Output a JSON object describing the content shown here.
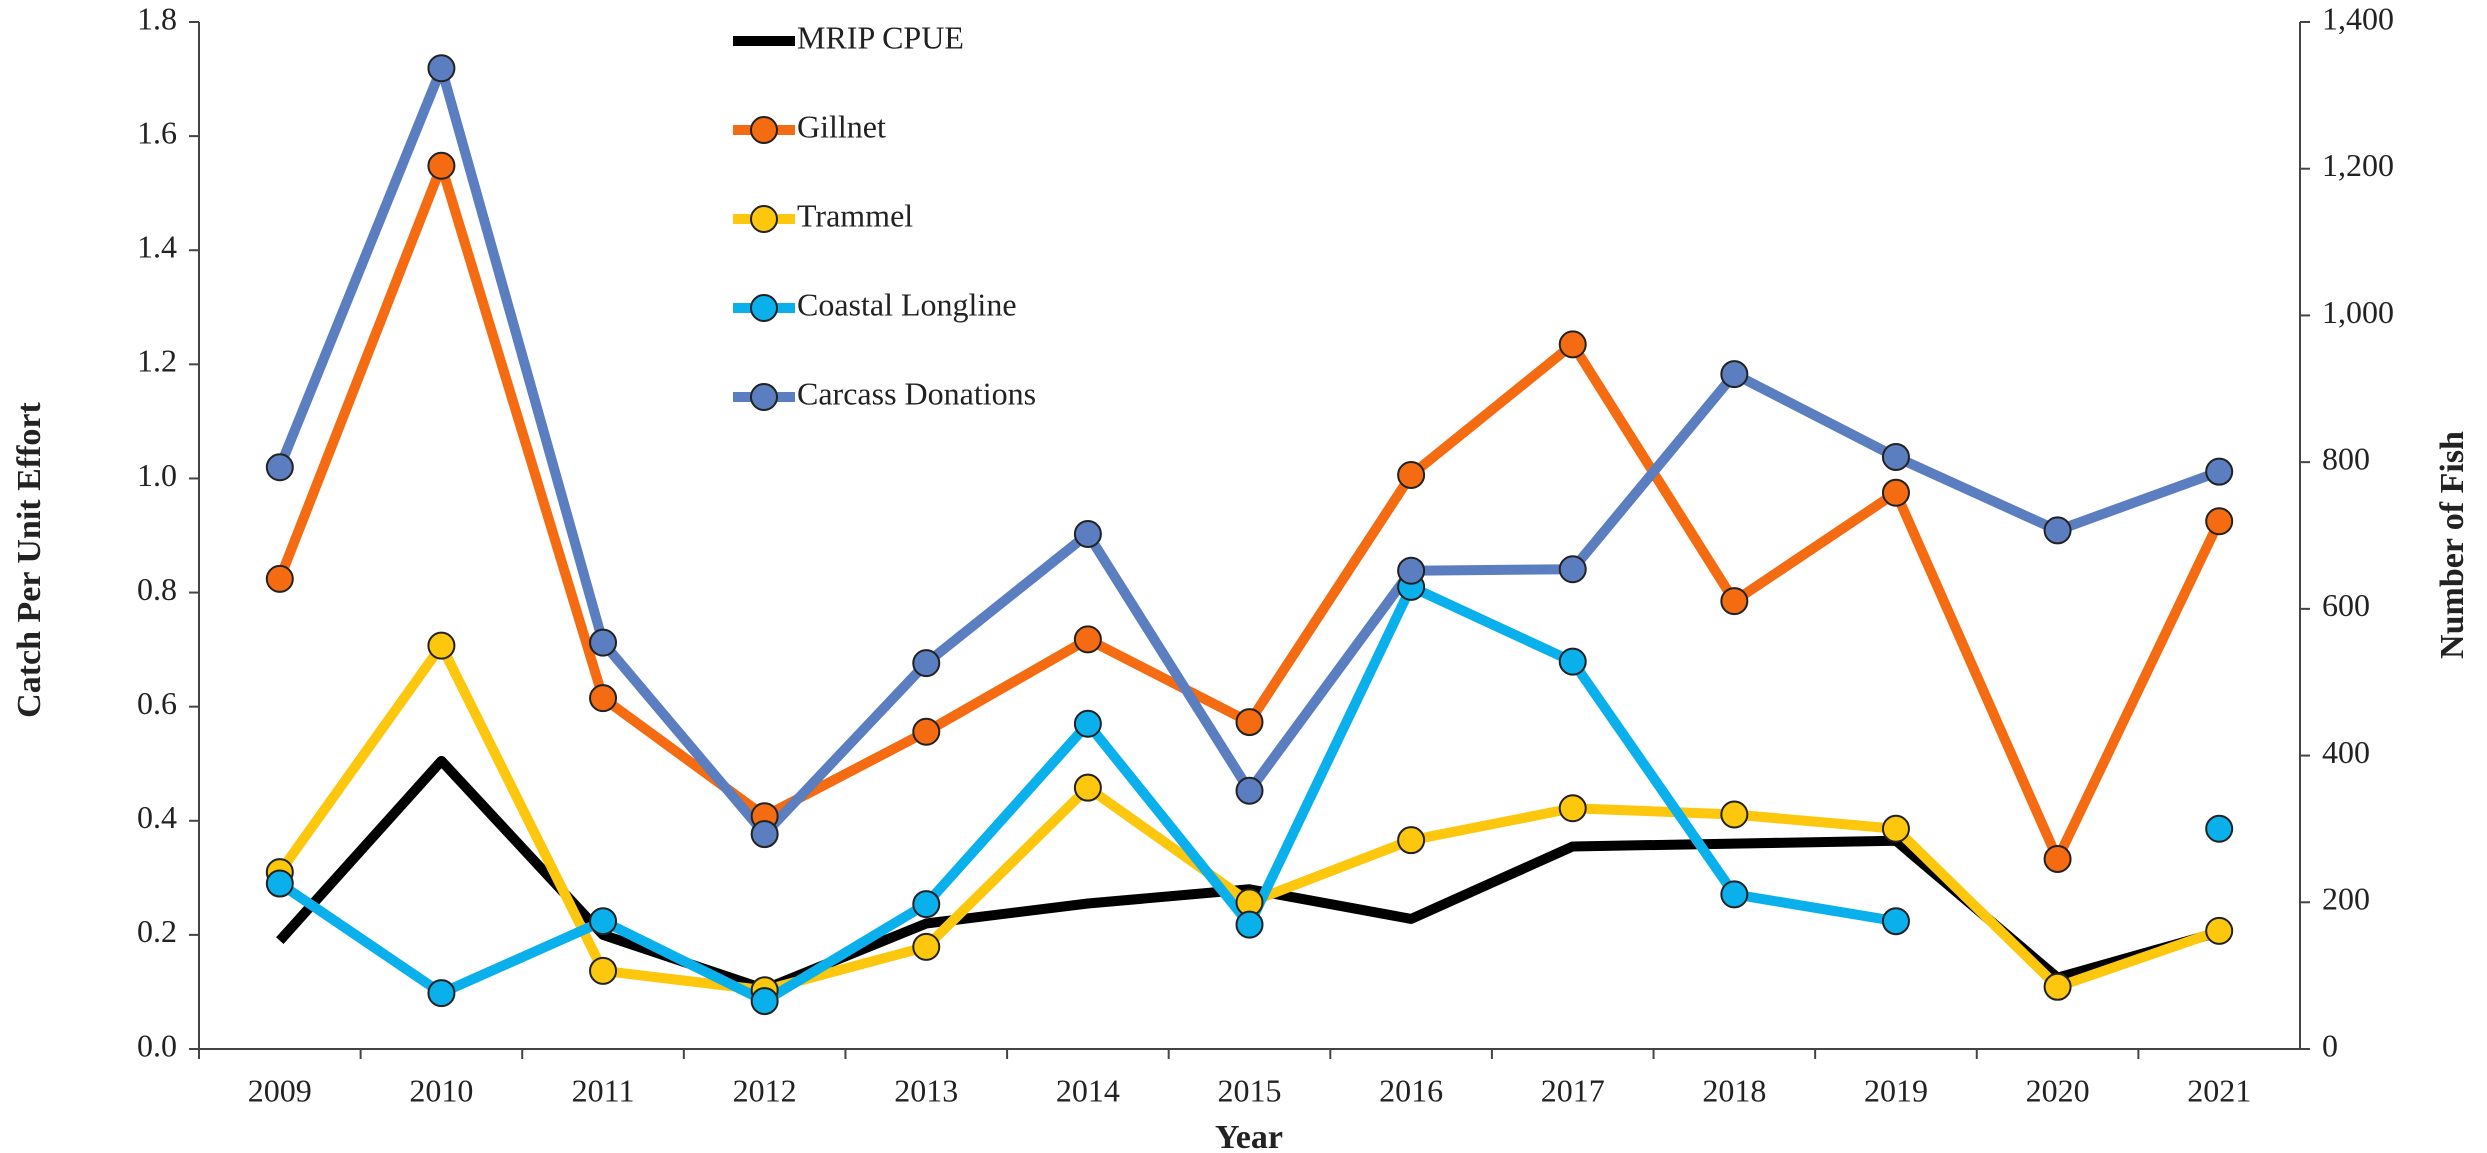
{
  "chart_data": {
    "type": "line",
    "xlabel": "Year",
    "ylabel": "Catch Per Unit Effort",
    "y2label": "Number of Fish",
    "categories": [
      "2009",
      "2010",
      "2011",
      "2012",
      "2013",
      "2014",
      "2015",
      "2016",
      "2017",
      "2018",
      "2019",
      "2020",
      "2021"
    ],
    "ylim": [
      0,
      1.8
    ],
    "yticks": [
      {
        "value": 0,
        "label": "0.0"
      },
      {
        "value": 0.2,
        "label": "0.2"
      },
      {
        "value": 0.4,
        "label": "0.4"
      },
      {
        "value": 0.6,
        "label": "0.6"
      },
      {
        "value": 0.8,
        "label": "0.8"
      },
      {
        "value": 1,
        "label": "1.0"
      },
      {
        "value": 1.2,
        "label": "1.2"
      },
      {
        "value": 1.4,
        "label": "1.4"
      },
      {
        "value": 1.6,
        "label": "1.6"
      },
      {
        "value": 1.8,
        "label": "1.8"
      }
    ],
    "y2lim": [
      0,
      1400
    ],
    "y2ticks": [
      0,
      200,
      400,
      600,
      800,
      {
        "value": 1000,
        "label": "1,000"
      },
      {
        "value": 1200,
        "label": "1,200"
      },
      {
        "value": 1400,
        "label": "1,400"
      }
    ],
    "grid": false,
    "series": [
      {
        "name": "MRIP CPUE",
        "color": "#000000",
        "marker": false,
        "values": [
          0.19,
          0.505,
          0.2,
          0.105,
          0.22,
          0.255,
          0.28,
          0.228,
          0.355,
          0.36,
          0.365,
          0.125,
          0.205
        ]
      },
      {
        "name": "Gillnet",
        "color": "#f46b12",
        "marker": true,
        "values": [
          0.824,
          1.548,
          0.615,
          0.408,
          0.556,
          0.718,
          0.573,
          1.006,
          1.235,
          0.785,
          0.975,
          0.333,
          0.925
        ]
      },
      {
        "name": "Trammel",
        "color": "#fcc70c",
        "marker": true,
        "values": [
          0.31,
          0.707,
          0.137,
          0.103,
          0.179,
          0.458,
          0.257,
          0.366,
          0.422,
          0.411,
          0.386,
          0.109,
          0.207
        ]
      },
      {
        "name": "Coastal Longline",
        "color": "#0ab0ec",
        "marker": true,
        "values": [
          0.29,
          0.098,
          0.224,
          0.084,
          0.254,
          0.57,
          0.218,
          0.81,
          0.679,
          0.271,
          0.224,
          null,
          0.386
        ]
      },
      {
        "name": "Carcass Donations",
        "color": "#5a7ebf",
        "marker": true,
        "axis": "y2",
        "values": [
          793,
          1337,
          554,
          293,
          526,
          702,
          352,
          652,
          654,
          920,
          807,
          707,
          787
        ]
      }
    ]
  }
}
